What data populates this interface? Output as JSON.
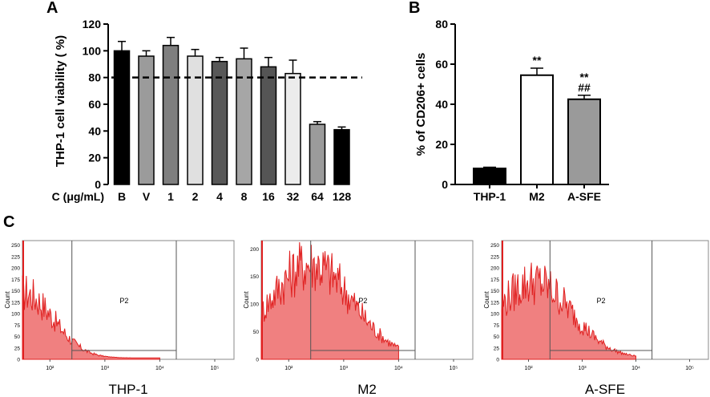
{
  "figure": {
    "panels": [
      {
        "label": "A"
      },
      {
        "label": "B"
      },
      {
        "label": "C"
      }
    ]
  },
  "chart_data": [
    {
      "id": "A",
      "type": "bar",
      "title": "",
      "ylabel": "THP-1 cell viability ( %)",
      "xlabel": "C (μg/mL)",
      "ylim": [
        0,
        120
      ],
      "yticks": [
        0,
        20,
        40,
        60,
        80,
        100,
        120
      ],
      "categories": [
        "B",
        "V",
        "1",
        "2",
        "4",
        "8",
        "16",
        "32",
        "64",
        "128"
      ],
      "values": [
        100,
        96,
        104,
        96,
        92,
        94,
        88,
        83,
        45,
        41
      ],
      "errors": [
        7,
        4,
        6,
        5,
        3,
        8,
        7,
        10,
        2,
        2
      ],
      "colors": [
        "#000000",
        "#9b9b9b",
        "#7f7f7f",
        "#e0e0e0",
        "#585858",
        "#a6a6a6",
        "#555555",
        "#ececec",
        "#9b9b9b",
        "#000000"
      ],
      "reference_line": 80
    },
    {
      "id": "B",
      "type": "bar",
      "title": "",
      "ylabel": "% of CD206+ cells",
      "xlabel": "",
      "ylim": [
        0,
        80
      ],
      "yticks": [
        0,
        20,
        40,
        60,
        80
      ],
      "categories": [
        "THP-1",
        "M2",
        "A-SFE"
      ],
      "values": [
        8,
        54.5,
        42.5
      ],
      "errors": [
        0.6,
        3.5,
        2
      ],
      "colors": [
        "#000000",
        "#ffffff",
        "#9a9a9a"
      ],
      "annotations": [
        {
          "category": "M2",
          "lines": [
            "**"
          ]
        },
        {
          "category": "A-SFE",
          "lines": [
            "**",
            "##"
          ]
        }
      ]
    },
    {
      "id": "C",
      "type": "histogram",
      "ylabel": "Count",
      "xscale": "log",
      "xticks": [
        "10²",
        "10³",
        "10⁴",
        "10⁵"
      ],
      "gate_label": "P2",
      "fill_color": "#f08080",
      "line_color": "#e02020",
      "plots": [
        {
          "name": "THP-1",
          "yticks": [
            "0",
            "25",
            "50",
            "75",
            "100",
            "125",
            "150",
            "175",
            "200",
            "225",
            "250"
          ],
          "ymax": 260,
          "gate_start_log": 2.4,
          "gate_end_log": 4.3,
          "peak_log": 1.5,
          "peak_count": 165,
          "width_log": 0.55
        },
        {
          "name": "M2",
          "yticks": [
            "0",
            "50",
            "100",
            "150",
            "200"
          ],
          "ymax": 215,
          "gate_start_log": 2.4,
          "gate_end_log": 4.3,
          "peak_log": 2.4,
          "peak_count": 195,
          "width_log": 0.75
        },
        {
          "name": "A-SFE",
          "yticks": [
            "0",
            "25",
            "50",
            "75",
            "100",
            "125",
            "150",
            "175",
            "200",
            "225",
            "250"
          ],
          "ymax": 260,
          "gate_start_log": 2.4,
          "gate_end_log": 4.3,
          "peak_log": 2.1,
          "peak_count": 190,
          "width_log": 0.7
        }
      ]
    }
  ]
}
